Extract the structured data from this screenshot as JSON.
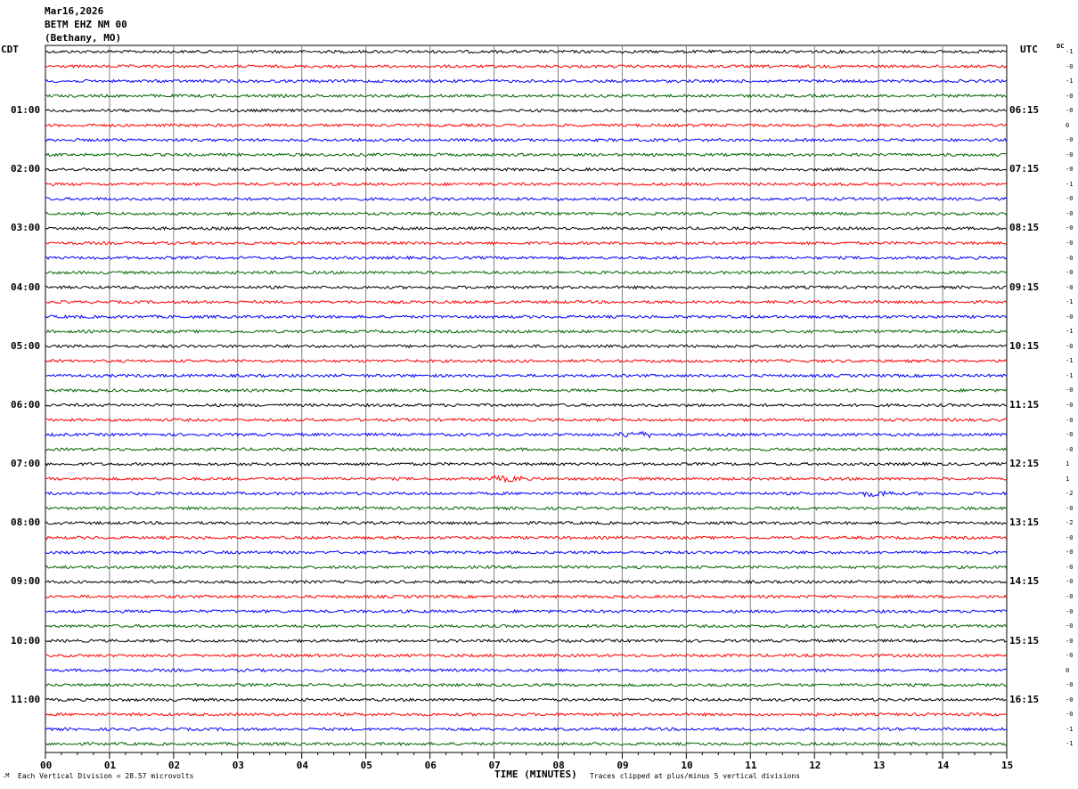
{
  "header": {
    "date": "Mar16,2026",
    "station": "BETM EHZ NM 00",
    "location": "(Bethany, MO)"
  },
  "left_timezone": "CDT",
  "right_timezone": "UTC",
  "dc_label": "DC",
  "left_labels": [
    "01:00",
    "02:00",
    "03:00",
    "04:00",
    "05:00",
    "06:00",
    "07:00",
    "08:00",
    "09:00",
    "10:00",
    "11:00"
  ],
  "right_labels": [
    "06:15",
    "07:15",
    "08:15",
    "09:15",
    "10:15",
    "11:15",
    "12:15",
    "13:15",
    "14:15",
    "15:15",
    "16:15"
  ],
  "dc_offsets": [
    "-1",
    "-0",
    "-1",
    "-0",
    "-0",
    "0",
    "-0",
    "-0",
    "-0",
    "-1",
    "-0",
    "-0",
    "-0",
    "-0",
    "-0",
    "-0",
    "-0",
    "-1",
    "-0",
    "-1",
    "-0",
    "-1",
    "-1",
    "-0",
    "-0",
    "-0",
    "-0",
    "-0",
    "1",
    "1",
    "-2",
    "-0",
    "-2",
    "-0",
    "-0",
    "-0",
    "-0",
    "-0",
    "-0",
    "-0",
    "-0",
    "-0",
    "0",
    "-0",
    "-0",
    "-0",
    "-1",
    "-1"
  ],
  "x_ticks": [
    "00",
    "01",
    "02",
    "03",
    "04",
    "05",
    "06",
    "07",
    "08",
    "09",
    "10",
    "11",
    "12",
    "13",
    "14",
    "15"
  ],
  "x_title": "TIME (MINUTES)",
  "footer": {
    "scale_note": "Each Vertical Division =   28.57 microvolts",
    "clip_note": "Traces clipped at plus/minus 5 vertical divisions"
  },
  "colors": {
    "cycle": [
      "#000000",
      "#ff0000",
      "#0000ff",
      "#006400"
    ],
    "grid": "#808080"
  },
  "chart_data": {
    "type": "line",
    "title": "BETM EHZ NM 00",
    "xlabel": "TIME (MINUTES)",
    "xlim": [
      0,
      15
    ],
    "row_count": 48,
    "rows_per_hour": 4,
    "series_color_cycle": [
      "black",
      "red",
      "blue",
      "green"
    ],
    "notable_events": [
      {
        "row": 26,
        "minute": 9.2,
        "note": "small blue burst"
      },
      {
        "row": 29,
        "minute": 7.2,
        "note": "small red burst"
      },
      {
        "row": 30,
        "minute": 13.0,
        "note": "small blue burst"
      }
    ]
  }
}
